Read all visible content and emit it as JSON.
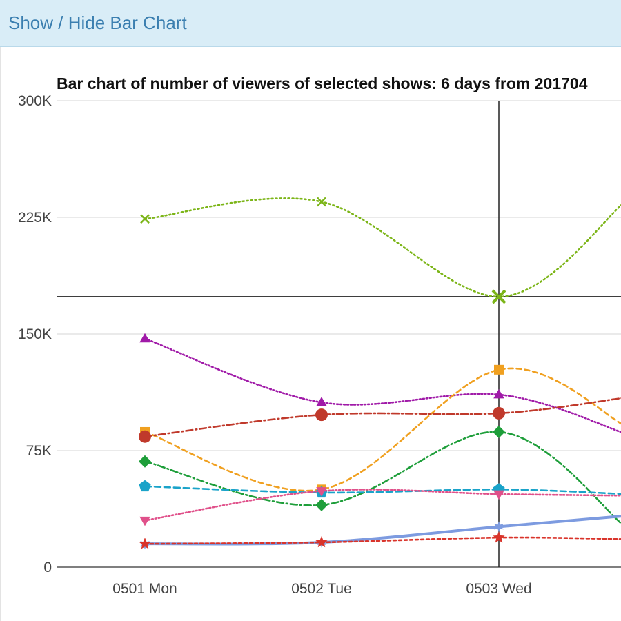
{
  "header": {
    "toggle_label": "Show / Hide Bar Chart"
  },
  "chart_data": {
    "type": "line",
    "title": "Bar chart of number of viewers of selected shows: 6 days from 201704",
    "xlabel": "",
    "ylabel": "",
    "categories": [
      "0501 Mon",
      "0502 Tue",
      "0503 Wed"
    ],
    "ylim": [
      0,
      300000
    ],
    "yticks": [
      0,
      75000,
      150000,
      225000,
      300000
    ],
    "ytick_labels": [
      "0",
      "75K",
      "150K",
      "225K",
      "300K"
    ],
    "grid": true,
    "legend": "none",
    "crosshair": {
      "category": "0503 Wed",
      "value": 174000
    },
    "series": [
      {
        "color": "#7cb518",
        "dash": "2,4",
        "marker": "x",
        "values": [
          224000,
          235000,
          174000
        ],
        "trail": 235000
      },
      {
        "color": "#a01aa8",
        "dash": "2,3",
        "marker": "triangle-up",
        "values": [
          147000,
          106000,
          111000
        ],
        "trail": 86000
      },
      {
        "color": "#f0a020",
        "dash": "7,5",
        "marker": "square",
        "values": [
          87000,
          50000,
          127000
        ],
        "trail": 91000
      },
      {
        "color": "#c0392b",
        "dash": "10,4,2,4",
        "marker": "circle",
        "values": [
          84000,
          98000,
          99000
        ],
        "trail": 109000
      },
      {
        "color": "#1e9e3a",
        "dash": "10,4,2,4",
        "marker": "diamond",
        "values": [
          68000,
          40000,
          87000
        ],
        "trail": 26000
      },
      {
        "color": "#1aa3c9",
        "dash": "9,5",
        "marker": "pentagon",
        "values": [
          52000,
          48000,
          50000
        ],
        "trail": 47000
      },
      {
        "color": "#e0508a",
        "dash": "2,3",
        "marker": "triangle-down",
        "values": [
          30000,
          49000,
          47000
        ],
        "trail": 46000
      },
      {
        "color": "#7d9be0",
        "dash": "",
        "marker": "star6",
        "values": [
          15000,
          16000,
          26000
        ],
        "trail": 33000
      },
      {
        "color": "#d9342b",
        "dash": "4,4",
        "marker": "star5",
        "values": [
          15000,
          16000,
          19000
        ],
        "trail": 18000
      }
    ]
  }
}
